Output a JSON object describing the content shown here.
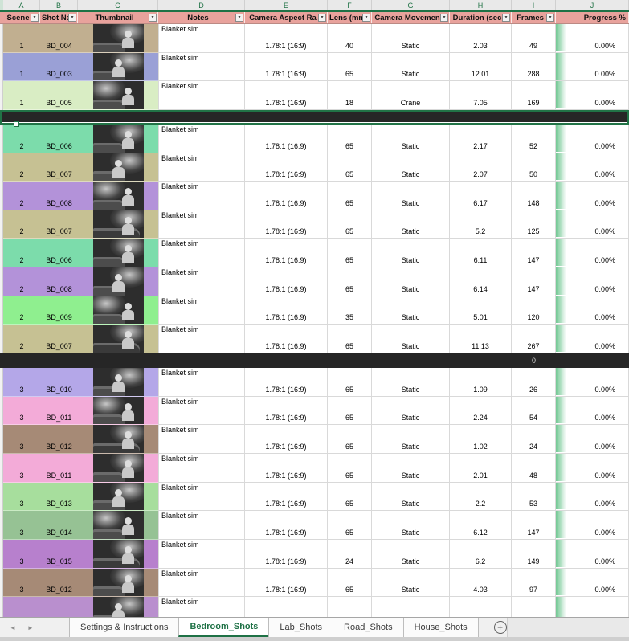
{
  "sheet": {
    "column_letters": [
      "A",
      "B",
      "C",
      "D",
      "E",
      "F",
      "G",
      "H",
      "I",
      "J"
    ],
    "headers": [
      "Scene",
      "Shot Na",
      "Thumbnail",
      "Notes",
      "Camera Aspect Ra",
      "Lens (mm)",
      "Camera Movemen",
      "Duration (sec",
      "Frames",
      "Progress %"
    ],
    "rows": [
      {
        "type": "shot",
        "scene": "1",
        "shot": "BD_004",
        "notes": "Blanket sim",
        "aspect": "1.78:1 (16:9)",
        "lens": "40",
        "movement": "Static",
        "duration": "2.03",
        "frames": "49",
        "progress": "0.00%",
        "color": "#c1af90"
      },
      {
        "type": "shot",
        "scene": "1",
        "shot": "BD_003",
        "notes": "Blanket sim",
        "aspect": "1.78:1 (16:9)",
        "lens": "65",
        "movement": "Static",
        "duration": "12.01",
        "frames": "288",
        "progress": "0.00%",
        "color": "#9aa0d6"
      },
      {
        "type": "shot",
        "scene": "1",
        "shot": "BD_005",
        "notes": "Blanket sim",
        "aspect": "1.78:1 (16:9)",
        "lens": "18",
        "movement": "Crane",
        "duration": "7.05",
        "frames": "169",
        "progress": "0.00%",
        "color": "#d9edc4"
      },
      {
        "type": "separator",
        "selected": true,
        "frames": ""
      },
      {
        "type": "shot",
        "scene": "2",
        "shot": "BD_006",
        "notes": "Blanket sim",
        "aspect": "1.78:1 (16:9)",
        "lens": "65",
        "movement": "Static",
        "duration": "2.17",
        "frames": "52",
        "progress": "0.00%",
        "color": "#7cdcab"
      },
      {
        "type": "shot",
        "scene": "2",
        "shot": "BD_007",
        "notes": "Blanket sim",
        "aspect": "1.78:1 (16:9)",
        "lens": "65",
        "movement": "Static",
        "duration": "2.07",
        "frames": "50",
        "progress": "0.00%",
        "color": "#c6c193"
      },
      {
        "type": "shot",
        "scene": "2",
        "shot": "BD_008",
        "notes": "Blanket sim",
        "aspect": "1.78:1 (16:9)",
        "lens": "65",
        "movement": "Static",
        "duration": "6.17",
        "frames": "148",
        "progress": "0.00%",
        "color": "#b392d9"
      },
      {
        "type": "shot",
        "scene": "2",
        "shot": "BD_007",
        "notes": "Blanket sim",
        "aspect": "1.78:1 (16:9)",
        "lens": "65",
        "movement": "Static",
        "duration": "5.2",
        "frames": "125",
        "progress": "0.00%",
        "color": "#c6c193"
      },
      {
        "type": "shot",
        "scene": "2",
        "shot": "BD_006",
        "notes": "Blanket sim",
        "aspect": "1.78:1 (16:9)",
        "lens": "65",
        "movement": "Static",
        "duration": "6.11",
        "frames": "147",
        "progress": "0.00%",
        "color": "#7cdcab"
      },
      {
        "type": "shot",
        "scene": "2",
        "shot": "BD_008",
        "notes": "Blanket sim",
        "aspect": "1.78:1 (16:9)",
        "lens": "65",
        "movement": "Static",
        "duration": "6.14",
        "frames": "147",
        "progress": "0.00%",
        "color": "#b392d9"
      },
      {
        "type": "shot",
        "scene": "2",
        "shot": "BD_009",
        "notes": "Blanket sim",
        "aspect": "1.78:1 (16:9)",
        "lens": "35",
        "movement": "Static",
        "duration": "5.01",
        "frames": "120",
        "progress": "0.00%",
        "color": "#8fef8f"
      },
      {
        "type": "shot",
        "scene": "2",
        "shot": "BD_007",
        "notes": "Blanket sim",
        "aspect": "1.78:1 (16:9)",
        "lens": "65",
        "movement": "Static",
        "duration": "11.13",
        "frames": "267",
        "progress": "0.00%",
        "color": "#c6c193"
      },
      {
        "type": "separator",
        "selected": false,
        "frames": "0"
      },
      {
        "type": "shot",
        "scene": "3",
        "shot": "BD_010",
        "notes": "Blanket sim",
        "aspect": "1.78:1 (16:9)",
        "lens": "65",
        "movement": "Static",
        "duration": "1.09",
        "frames": "26",
        "progress": "0.00%",
        "color": "#b4a7e8"
      },
      {
        "type": "shot",
        "scene": "3",
        "shot": "BD_011",
        "notes": "Blanket sim",
        "aspect": "1.78:1 (16:9)",
        "lens": "65",
        "movement": "Static",
        "duration": "2.24",
        "frames": "54",
        "progress": "0.00%",
        "color": "#f3abd8"
      },
      {
        "type": "shot",
        "scene": "3",
        "shot": "BD_012",
        "notes": "Blanket sim",
        "aspect": "1.78:1 (16:9)",
        "lens": "65",
        "movement": "Static",
        "duration": "1.02",
        "frames": "24",
        "progress": "0.00%",
        "color": "#a68a76"
      },
      {
        "type": "shot",
        "scene": "3",
        "shot": "BD_011",
        "notes": "Blanket sim",
        "aspect": "1.78:1 (16:9)",
        "lens": "65",
        "movement": "Static",
        "duration": "2.01",
        "frames": "48",
        "progress": "0.00%",
        "color": "#f3abd8"
      },
      {
        "type": "shot",
        "scene": "3",
        "shot": "BD_013",
        "notes": "Blanket sim",
        "aspect": "1.78:1 (16:9)",
        "lens": "65",
        "movement": "Static",
        "duration": "2.2",
        "frames": "53",
        "progress": "0.00%",
        "color": "#a7de9d"
      },
      {
        "type": "shot",
        "scene": "3",
        "shot": "BD_014",
        "notes": "Blanket sim",
        "aspect": "1.78:1 (16:9)",
        "lens": "65",
        "movement": "Static",
        "duration": "6.12",
        "frames": "147",
        "progress": "0.00%",
        "color": "#96c294"
      },
      {
        "type": "shot",
        "scene": "3",
        "shot": "BD_015",
        "notes": "Blanket sim",
        "aspect": "1.78:1 (16:9)",
        "lens": "24",
        "movement": "Static",
        "duration": "6.2",
        "frames": "149",
        "progress": "0.00%",
        "color": "#b780cd"
      },
      {
        "type": "shot",
        "scene": "3",
        "shot": "BD_012",
        "notes": "Blanket sim",
        "aspect": "1.78:1 (16:9)",
        "lens": "65",
        "movement": "Static",
        "duration": "4.03",
        "frames": "97",
        "progress": "0.00%",
        "color": "#a68a76"
      },
      {
        "type": "shot",
        "scene": "",
        "shot": "",
        "notes": "Blanket sim",
        "aspect": "",
        "lens": "",
        "movement": "",
        "duration": "",
        "frames": "",
        "progress": "",
        "color": "#b98fce",
        "partial": true
      }
    ]
  },
  "tab_bar": {
    "tabs": [
      {
        "label": "Settings & Instructions",
        "active": false
      },
      {
        "label": "Bedroom_Shots",
        "active": true
      },
      {
        "label": "Lab_Shots",
        "active": false
      },
      {
        "label": "Road_Shots",
        "active": false
      },
      {
        "label": "House_Shots",
        "active": false
      }
    ]
  },
  "icons": {
    "filter_dropdown": "▾",
    "tab_nav_prev": "◄",
    "tab_nav_next": "►",
    "add_sheet": "+"
  },
  "colors": {
    "header_fill": "#e8a29c",
    "excel_green": "#217346",
    "data_bar_green": "#74c894",
    "separator_fill": "#262626"
  }
}
